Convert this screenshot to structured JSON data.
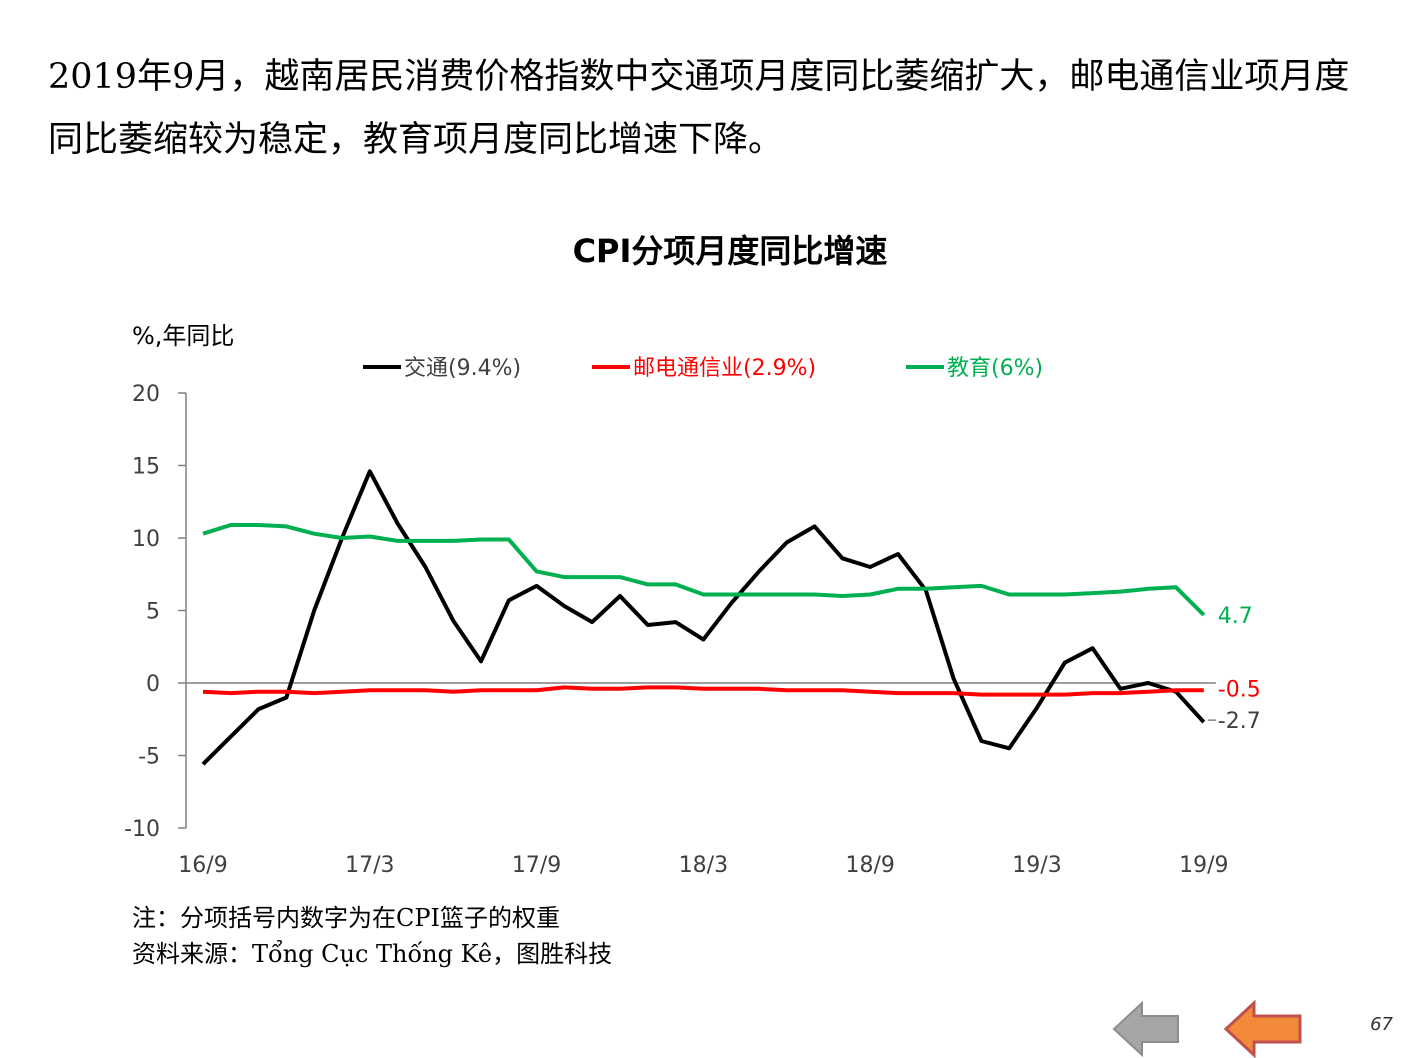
{
  "intro_text": "2019年9月，越南居民消费价格指数中交通项月度同比萎缩扩大，邮电通信业项月度同比萎缩较为稳定，教育项月度同比增速下降。",
  "notes": {
    "note": "注：分项括号内数字为在CPI篮子的权重",
    "source": "资料来源：Tổng Cục Thống Kê，图胜科技"
  },
  "page_number": "67",
  "nav": {
    "prev_icon": "left-arrow-icon",
    "next_icon": "left-arrow-icon",
    "prev_color": "#a6a6a6",
    "next_color": "#f28a3a"
  },
  "chart_data": {
    "type": "line",
    "title": "CPI分项月度同比增速",
    "ylabel": "%,年同比",
    "ylim": [
      -10,
      20
    ],
    "yticks": [
      "20",
      "15",
      "10",
      "5",
      "0",
      "-5",
      "-10"
    ],
    "x_tick_labels": [
      "16/9",
      "17/3",
      "17/9",
      "18/3",
      "18/9",
      "19/3",
      "19/9"
    ],
    "x": [
      "16/9",
      "16/10",
      "16/11",
      "16/12",
      "17/1",
      "17/2",
      "17/3",
      "17/4",
      "17/5",
      "17/6",
      "17/7",
      "17/8",
      "17/9",
      "17/10",
      "17/11",
      "17/12",
      "18/1",
      "18/2",
      "18/3",
      "18/4",
      "18/5",
      "18/6",
      "18/7",
      "18/8",
      "18/9",
      "18/10",
      "18/11",
      "18/12",
      "19/1",
      "19/2",
      "19/3",
      "19/4",
      "19/5",
      "19/6",
      "19/7",
      "19/8",
      "19/9"
    ],
    "grid": false,
    "legend_position": "top",
    "series": [
      {
        "name": "交通(9.4%)",
        "color": "#000000",
        "end_label": "-2.7",
        "values": [
          -5.6,
          -3.7,
          -1.8,
          -1.0,
          5.0,
          10.0,
          14.6,
          11.0,
          8.0,
          4.3,
          1.5,
          5.7,
          6.7,
          5.3,
          4.2,
          6.0,
          4.0,
          4.2,
          3.0,
          5.5,
          7.7,
          9.7,
          10.8,
          8.6,
          8.0,
          8.9,
          6.4,
          0.3,
          -4.0,
          -4.5,
          -1.7,
          1.4,
          2.4,
          -0.4,
          0.0,
          -0.6,
          -2.7
        ]
      },
      {
        "name": "邮电通信业(2.9%)",
        "color": "#ff0000",
        "end_label": "-0.5",
        "values": [
          -0.6,
          -0.7,
          -0.6,
          -0.6,
          -0.7,
          -0.6,
          -0.5,
          -0.5,
          -0.5,
          -0.6,
          -0.5,
          -0.5,
          -0.5,
          -0.3,
          -0.4,
          -0.4,
          -0.3,
          -0.3,
          -0.4,
          -0.4,
          -0.4,
          -0.5,
          -0.5,
          -0.5,
          -0.6,
          -0.7,
          -0.7,
          -0.7,
          -0.8,
          -0.8,
          -0.8,
          -0.8,
          -0.7,
          -0.7,
          -0.6,
          -0.5,
          -0.5
        ]
      },
      {
        "name": "教育(6%)",
        "color": "#00b050",
        "end_label": "4.7",
        "values": [
          10.3,
          10.9,
          10.9,
          10.8,
          10.3,
          10.0,
          10.1,
          9.8,
          9.8,
          9.8,
          9.9,
          9.9,
          7.7,
          7.3,
          7.3,
          7.3,
          6.8,
          6.8,
          6.1,
          6.1,
          6.1,
          6.1,
          6.1,
          6.0,
          6.1,
          6.5,
          6.5,
          6.6,
          6.7,
          6.1,
          6.1,
          6.1,
          6.2,
          6.3,
          6.5,
          6.6,
          4.7
        ]
      }
    ]
  }
}
